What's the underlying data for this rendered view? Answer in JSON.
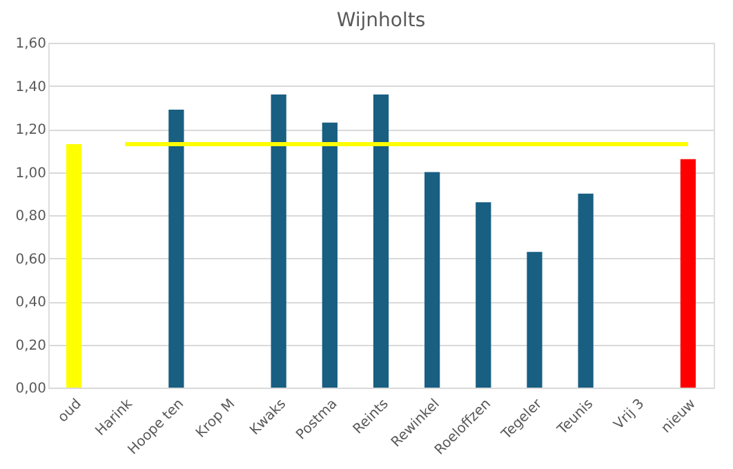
{
  "chart_data": {
    "type": "bar",
    "title": "Wijnholts",
    "categories": [
      "oud",
      "Harink",
      "Hoope ten",
      "Krop M",
      "Kwaks",
      "Postma",
      "Reints",
      "Rewinkel",
      "Roeloffzen",
      "Tegeler",
      "Teunis",
      "Vrij 3",
      "nieuw"
    ],
    "series": [
      {
        "values": [
          1.13,
          null,
          1.29,
          null,
          1.36,
          1.23,
          1.36,
          1.0,
          0.86,
          0.63,
          0.9,
          null,
          1.06
        ],
        "colors": [
          "#ffff00",
          "#185f82",
          "#185f82",
          "#185f82",
          "#185f82",
          "#185f82",
          "#185f82",
          "#185f82",
          "#185f82",
          "#185f82",
          "#185f82",
          "#185f82",
          "#ff0000"
        ]
      },
      {
        "type": "line",
        "color": "#ffff00",
        "values": [
          null,
          1.13,
          1.13,
          1.13,
          1.13,
          1.13,
          1.13,
          1.13,
          1.13,
          1.13,
          1.13,
          1.13,
          1.13
        ]
      }
    ],
    "ylim": [
      0,
      1.6
    ],
    "yticks": [
      {
        "value": 0,
        "label": "0,00"
      },
      {
        "value": 0.2,
        "label": "0,20"
      },
      {
        "value": 0.4,
        "label": "0,40"
      },
      {
        "value": 0.6,
        "label": "0,60"
      },
      {
        "value": 0.8,
        "label": "0,80"
      },
      {
        "value": 1.0,
        "label": "1,00"
      },
      {
        "value": 1.2,
        "label": "1,20"
      },
      {
        "value": 1.4,
        "label": "1,40"
      },
      {
        "value": 1.6,
        "label": "1,60"
      }
    ],
    "grid": "y",
    "legend": false
  }
}
